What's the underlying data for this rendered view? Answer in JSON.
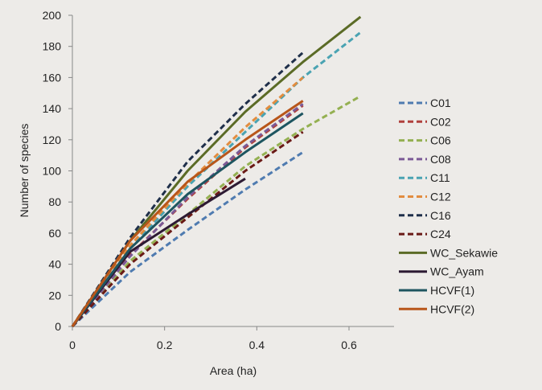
{
  "chart_data": {
    "type": "line",
    "title": "",
    "xlabel": "Area (ha)",
    "ylabel": "Number of species",
    "xlim": [
      0,
      0.7
    ],
    "ylim": [
      0,
      200
    ],
    "xticks": [
      "0",
      "0.2",
      "0.4",
      "0.6"
    ],
    "xtick_values": [
      0,
      0.2,
      0.4,
      0.6
    ],
    "yticks": [
      "0",
      "20",
      "40",
      "60",
      "80",
      "100",
      "120",
      "140",
      "160",
      "180",
      "200"
    ],
    "ytick_values": [
      0,
      20,
      40,
      60,
      80,
      100,
      120,
      140,
      160,
      180,
      200
    ],
    "grid": false,
    "legend_position": "right",
    "series": [
      {
        "name": "C01",
        "color": "#4f7bb0",
        "dashed": true,
        "x": [
          0,
          0.125,
          0.25,
          0.375,
          0.5
        ],
        "y": [
          0,
          35,
          62,
          88,
          112
        ]
      },
      {
        "name": "C02",
        "color": "#b0403c",
        "dashed": true,
        "x": [
          0,
          0.125,
          0.25,
          0.375,
          0.5
        ],
        "y": [
          0,
          46,
          82,
          115,
          142
        ]
      },
      {
        "name": "C06",
        "color": "#94b051",
        "dashed": true,
        "x": [
          0,
          0.125,
          0.25,
          0.375,
          0.5,
          0.625
        ],
        "y": [
          0,
          42,
          72,
          103,
          127,
          148
        ]
      },
      {
        "name": "C08",
        "color": "#7b5a96",
        "dashed": true,
        "x": [
          0,
          0.125,
          0.25,
          0.375,
          0.5
        ],
        "y": [
          0,
          45,
          83,
          116,
          143
        ]
      },
      {
        "name": "C11",
        "color": "#4aa3b2",
        "dashed": true,
        "x": [
          0,
          0.125,
          0.25,
          0.375,
          0.5,
          0.625
        ],
        "y": [
          0,
          50,
          90,
          125,
          160,
          189
        ]
      },
      {
        "name": "C12",
        "color": "#e28c3f",
        "dashed": true,
        "x": [
          0,
          0.125,
          0.25,
          0.375,
          0.5
        ],
        "y": [
          0,
          52,
          92,
          128,
          160
        ]
      },
      {
        "name": "C16",
        "color": "#1f2f4a",
        "dashed": true,
        "x": [
          0,
          0.125,
          0.25,
          0.375,
          0.5
        ],
        "y": [
          0,
          57,
          106,
          143,
          176
        ]
      },
      {
        "name": "C24",
        "color": "#6a1a16",
        "dashed": true,
        "x": [
          0,
          0.125,
          0.25,
          0.375,
          0.5
        ],
        "y": [
          0,
          40,
          70,
          100,
          125
        ]
      },
      {
        "name": "WC_Sekawie",
        "color": "#5b6b26",
        "dashed": false,
        "x": [
          0,
          0.125,
          0.25,
          0.375,
          0.5,
          0.625
        ],
        "y": [
          0,
          55,
          100,
          138,
          170,
          199
        ]
      },
      {
        "name": "WC_Ayam",
        "color": "#2d1a33",
        "dashed": false,
        "x": [
          0,
          0.125,
          0.25,
          0.375
        ],
        "y": [
          0,
          48,
          72,
          95
        ]
      },
      {
        "name": "HCVF(1)",
        "color": "#1e5560",
        "dashed": false,
        "x": [
          0,
          0.125,
          0.25,
          0.375,
          0.5
        ],
        "y": [
          0,
          50,
          85,
          112,
          137
        ]
      },
      {
        "name": "HCVF(2)",
        "color": "#b8561a",
        "dashed": false,
        "x": [
          0,
          0.125,
          0.25,
          0.375,
          0.5
        ],
        "y": [
          0,
          55,
          93,
          120,
          145
        ]
      }
    ]
  }
}
